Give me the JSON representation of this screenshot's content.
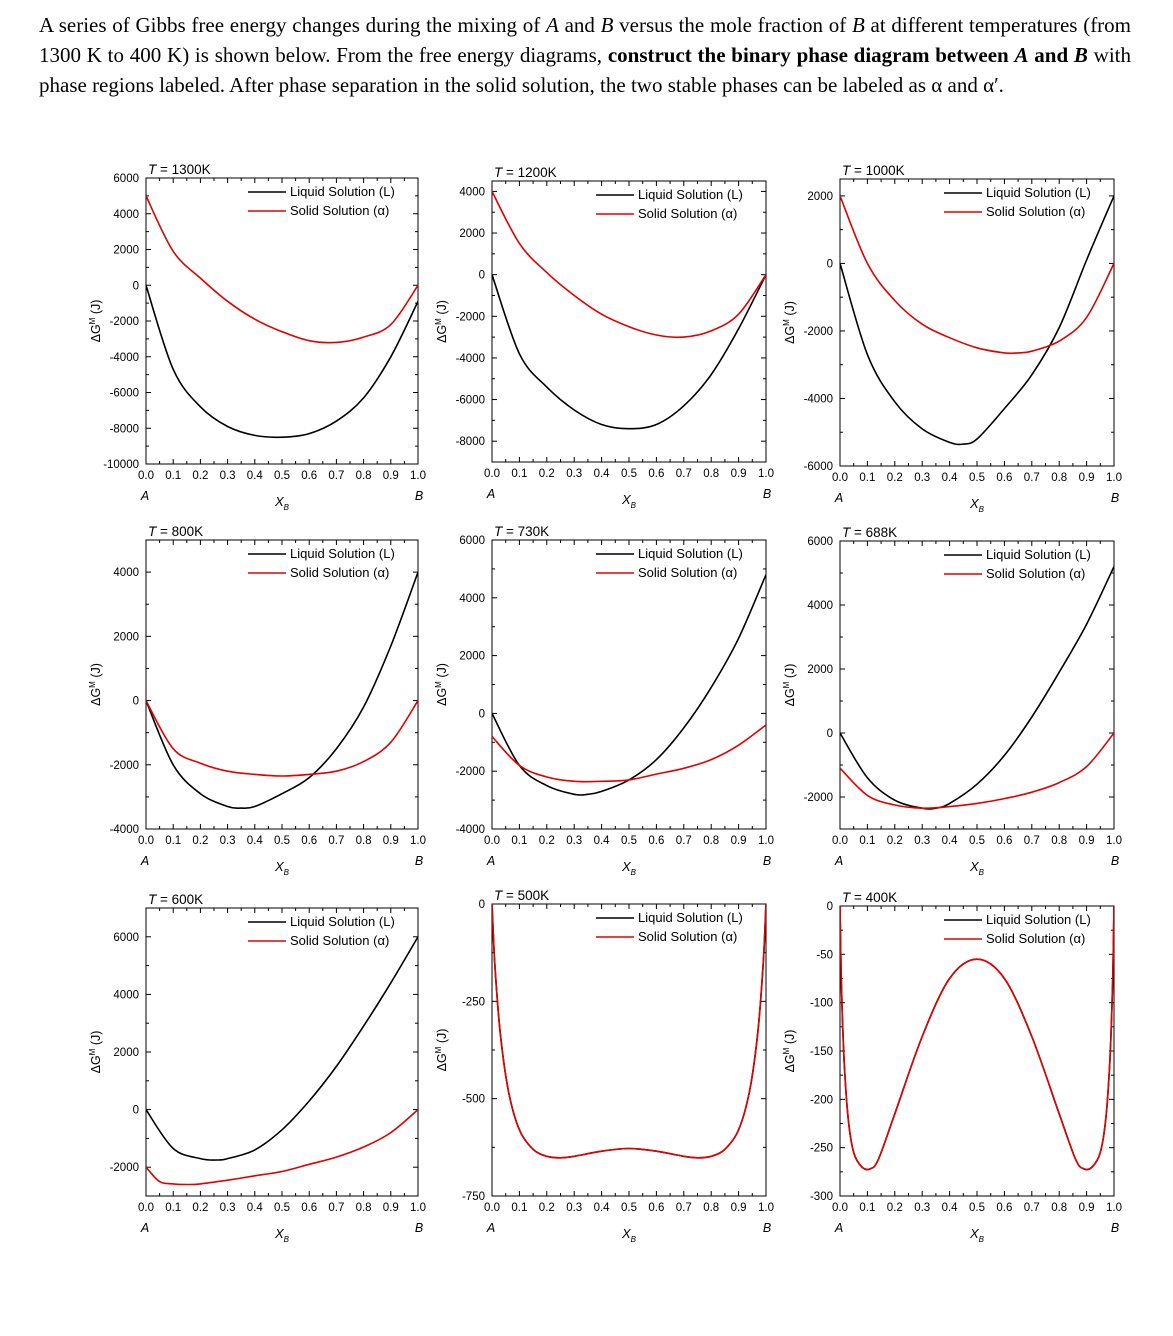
{
  "problem": {
    "p1": "A series of Gibbs free energy changes during the mixing of ",
    "A": "A",
    "and1": " and ",
    "B": "B",
    "p2": " versus the mole fraction of ",
    "B2": "B",
    "p3": " at different temperatures (from 1300 K to 400 K) is shown below. From the free energy diagrams, ",
    "bold1": "construct the binary phase diagram between ",
    "boldA": "A",
    "boldand": " and ",
    "boldB": "B",
    "p4": " with phase regions labeled. After phase separation in the solid solution, the two stable phases can be labeled as α and α′."
  },
  "common": {
    "ylabel": "ΔG",
    "ylabel_sup": "M",
    "ylabel_unit": " (J)",
    "xlabel": "X",
    "xlabel_sub": "B",
    "end_left": "A",
    "end_right": "B",
    "legend_liquid": "Liquid Solution (L)",
    "legend_solid": "Solid Solution (α)",
    "x_ticks": [
      "0.0",
      "0.1",
      "0.2",
      "0.3",
      "0.4",
      "0.5",
      "0.6",
      "0.7",
      "0.8",
      "0.9",
      "1.0"
    ],
    "colors": {
      "liquid": "#000000",
      "solid": "#e00000"
    }
  },
  "chart_data": [
    {
      "type": "line",
      "title_prefix": "T = ",
      "title_value": "1300K",
      "ylim": [
        -10000,
        6000
      ],
      "yticks": [
        6000,
        4000,
        2000,
        0,
        -2000,
        -4000,
        -6000,
        -8000,
        -10000
      ],
      "series": [
        {
          "name": "Liquid Solution (L)",
          "x": [
            0,
            0.1,
            0.2,
            0.3,
            0.4,
            0.5,
            0.6,
            0.7,
            0.8,
            0.9,
            1.0
          ],
          "y": [
            0,
            -4700,
            -6800,
            -7900,
            -8400,
            -8500,
            -8300,
            -7600,
            -6300,
            -4000,
            -900
          ]
        },
        {
          "name": "Solid Solution (α)",
          "x": [
            0,
            0.1,
            0.2,
            0.3,
            0.4,
            0.5,
            0.6,
            0.7,
            0.8,
            0.9,
            1.0
          ],
          "y": [
            5000,
            1900,
            400,
            -900,
            -1900,
            -2600,
            -3100,
            -3200,
            -2900,
            -2200,
            0
          ]
        }
      ]
    },
    {
      "type": "line",
      "title_prefix": "T = ",
      "title_value": "1200K",
      "ylim": [
        -9000,
        4500
      ],
      "yticks": [
        4000,
        2000,
        0,
        -2000,
        -4000,
        -6000,
        -8000
      ],
      "series": [
        {
          "name": "Liquid Solution (L)",
          "x": [
            0,
            0.1,
            0.2,
            0.3,
            0.4,
            0.5,
            0.6,
            0.7,
            0.8,
            0.9,
            1.0
          ],
          "y": [
            0,
            -3800,
            -5400,
            -6500,
            -7200,
            -7400,
            -7200,
            -6300,
            -4800,
            -2600,
            0
          ]
        },
        {
          "name": "Solid Solution (α)",
          "x": [
            0,
            0.1,
            0.2,
            0.3,
            0.4,
            0.5,
            0.6,
            0.7,
            0.8,
            0.9,
            1.0
          ],
          "y": [
            4000,
            1500,
            100,
            -1000,
            -1900,
            -2500,
            -2900,
            -3000,
            -2700,
            -1900,
            0
          ]
        }
      ]
    },
    {
      "type": "line",
      "title_prefix": "T = ",
      "title_value": "1000K",
      "ylim": [
        -6000,
        2500
      ],
      "yticks": [
        2000,
        0,
        -2000,
        -4000,
        -6000
      ],
      "series": [
        {
          "name": "Liquid Solution (L)",
          "x": [
            0,
            0.1,
            0.2,
            0.3,
            0.4,
            0.45,
            0.5,
            0.6,
            0.7,
            0.8,
            0.9,
            1.0
          ],
          "y": [
            0,
            -2700,
            -4100,
            -4900,
            -5300,
            -5350,
            -5200,
            -4300,
            -3300,
            -1900,
            100,
            2000
          ]
        },
        {
          "name": "Solid Solution (α)",
          "x": [
            0,
            0.1,
            0.2,
            0.3,
            0.4,
            0.5,
            0.6,
            0.65,
            0.7,
            0.8,
            0.9,
            1.0
          ],
          "y": [
            2000,
            0,
            -1100,
            -1800,
            -2200,
            -2500,
            -2650,
            -2650,
            -2600,
            -2300,
            -1600,
            0
          ]
        }
      ]
    },
    {
      "type": "line",
      "title_prefix": "T = ",
      "title_value": "800K",
      "ylim": [
        -4000,
        5000
      ],
      "yticks": [
        4000,
        2000,
        0,
        -2000,
        -4000
      ],
      "series": [
        {
          "name": "Liquid Solution (L)",
          "x": [
            0,
            0.1,
            0.2,
            0.3,
            0.35,
            0.4,
            0.5,
            0.6,
            0.7,
            0.8,
            0.9,
            1.0
          ],
          "y": [
            0,
            -2000,
            -2900,
            -3300,
            -3350,
            -3300,
            -2900,
            -2400,
            -1500,
            -200,
            1700,
            4000
          ]
        },
        {
          "name": "Solid Solution (α)",
          "x": [
            0,
            0.1,
            0.2,
            0.3,
            0.4,
            0.5,
            0.6,
            0.7,
            0.8,
            0.9,
            1.0
          ],
          "y": [
            0,
            -1500,
            -1950,
            -2200,
            -2300,
            -2350,
            -2300,
            -2200,
            -1900,
            -1300,
            0
          ]
        }
      ]
    },
    {
      "type": "line",
      "title_prefix": "T = ",
      "title_value": "730K",
      "ylim": [
        -4000,
        6000
      ],
      "yticks": [
        6000,
        4000,
        2000,
        0,
        -2000,
        -4000
      ],
      "series": [
        {
          "name": "Liquid Solution (L)",
          "x": [
            0,
            0.1,
            0.2,
            0.3,
            0.35,
            0.4,
            0.5,
            0.6,
            0.7,
            0.8,
            0.9,
            1.0
          ],
          "y": [
            0,
            -1800,
            -2500,
            -2800,
            -2800,
            -2700,
            -2300,
            -1600,
            -500,
            900,
            2600,
            4800
          ]
        },
        {
          "name": "Solid Solution (α)",
          "x": [
            0,
            0.1,
            0.2,
            0.3,
            0.4,
            0.5,
            0.6,
            0.7,
            0.8,
            0.9,
            1.0
          ],
          "y": [
            -800,
            -1800,
            -2200,
            -2350,
            -2350,
            -2300,
            -2100,
            -1900,
            -1600,
            -1100,
            -400
          ]
        }
      ]
    },
    {
      "type": "line",
      "title_prefix": "T = ",
      "title_value": "688K",
      "ylim": [
        -3000,
        6000
      ],
      "yticks": [
        6000,
        4000,
        2000,
        0,
        -2000
      ],
      "series": [
        {
          "name": "Liquid Solution (L)",
          "x": [
            0,
            0.1,
            0.2,
            0.3,
            0.35,
            0.4,
            0.5,
            0.6,
            0.7,
            0.8,
            0.9,
            1.0
          ],
          "y": [
            0,
            -1400,
            -2100,
            -2350,
            -2350,
            -2200,
            -1600,
            -700,
            500,
            1900,
            3400,
            5200
          ]
        },
        {
          "name": "Solid Solution (α)",
          "x": [
            0,
            0.1,
            0.2,
            0.3,
            0.4,
            0.5,
            0.6,
            0.7,
            0.8,
            0.9,
            1.0
          ],
          "y": [
            -1100,
            -1950,
            -2250,
            -2350,
            -2300,
            -2200,
            -2050,
            -1850,
            -1550,
            -1050,
            0
          ]
        }
      ]
    },
    {
      "type": "line",
      "title_prefix": "T = ",
      "title_value": "600K",
      "ylim": [
        -3000,
        7000
      ],
      "yticks": [
        6000,
        4000,
        2000,
        0,
        -2000
      ],
      "series": [
        {
          "name": "Liquid Solution (L)",
          "x": [
            0,
            0.1,
            0.2,
            0.26,
            0.3,
            0.4,
            0.5,
            0.6,
            0.7,
            0.8,
            0.9,
            1.0
          ],
          "y": [
            0,
            -1350,
            -1700,
            -1750,
            -1700,
            -1400,
            -700,
            300,
            1500,
            2900,
            4400,
            6000
          ]
        },
        {
          "name": "Solid Solution (α)",
          "x": [
            0,
            0.05,
            0.1,
            0.15,
            0.2,
            0.3,
            0.4,
            0.5,
            0.6,
            0.7,
            0.8,
            0.9,
            1.0
          ],
          "y": [
            -2000,
            -2500,
            -2580,
            -2600,
            -2580,
            -2450,
            -2300,
            -2150,
            -1900,
            -1650,
            -1300,
            -800,
            0
          ]
        }
      ]
    },
    {
      "type": "line",
      "title_prefix": "T = ",
      "title_value": "500K",
      "ylim": [
        -750,
        0
      ],
      "yticks": [
        0,
        -250,
        -500,
        -750
      ],
      "series": [
        {
          "name": "Liquid Solution (L)",
          "x": [
            0,
            0.01,
            0.03,
            0.06,
            0.1,
            0.15,
            0.2,
            0.25,
            0.3,
            0.4,
            0.5,
            0.6,
            0.7,
            0.75,
            0.8,
            0.85,
            0.9,
            0.94,
            0.97,
            0.99,
            1.0
          ],
          "y": [
            0,
            -150,
            -330,
            -480,
            -580,
            -630,
            -648,
            -652,
            -648,
            -635,
            -628,
            -635,
            -648,
            -652,
            -648,
            -630,
            -580,
            -480,
            -330,
            -150,
            0
          ]
        },
        {
          "name": "Solid Solution (α)",
          "x": [
            0,
            0.01,
            0.03,
            0.06,
            0.1,
            0.15,
            0.2,
            0.25,
            0.3,
            0.4,
            0.5,
            0.6,
            0.7,
            0.75,
            0.8,
            0.85,
            0.9,
            0.94,
            0.97,
            0.99,
            1.0
          ],
          "y": [
            0,
            -150,
            -330,
            -480,
            -580,
            -630,
            -648,
            -652,
            -648,
            -635,
            -628,
            -635,
            -648,
            -652,
            -648,
            -630,
            -580,
            -480,
            -330,
            -150,
            0
          ]
        }
      ]
    },
    {
      "type": "line",
      "title_prefix": "T = ",
      "title_value": "400K",
      "ylim": [
        -300,
        0
      ],
      "yticks": [
        0,
        -50,
        -100,
        -150,
        -200,
        -250,
        -300
      ],
      "series": [
        {
          "name": "Liquid Solution (L)",
          "x": [
            0,
            0.005,
            0.015,
            0.03,
            0.05,
            0.08,
            0.11,
            0.14,
            0.2,
            0.3,
            0.4,
            0.5,
            0.6,
            0.7,
            0.8,
            0.86,
            0.89,
            0.92,
            0.95,
            0.97,
            0.985,
            0.995,
            1.0
          ],
          "y": [
            0,
            -80,
            -160,
            -220,
            -255,
            -270,
            -272,
            -262,
            -215,
            -135,
            -75,
            -55,
            -75,
            -135,
            -215,
            -262,
            -272,
            -270,
            -255,
            -220,
            -160,
            -80,
            0
          ]
        },
        {
          "name": "Solid Solution (α)",
          "x": [
            0,
            0.005,
            0.015,
            0.03,
            0.05,
            0.08,
            0.11,
            0.14,
            0.2,
            0.3,
            0.4,
            0.5,
            0.6,
            0.7,
            0.8,
            0.86,
            0.89,
            0.92,
            0.95,
            0.97,
            0.985,
            0.995,
            1.0
          ],
          "y": [
            0,
            -80,
            -160,
            -220,
            -255,
            -270,
            -272,
            -262,
            -215,
            -135,
            -75,
            -55,
            -75,
            -135,
            -215,
            -262,
            -272,
            -270,
            -255,
            -220,
            -160,
            -80,
            0
          ]
        }
      ]
    }
  ]
}
